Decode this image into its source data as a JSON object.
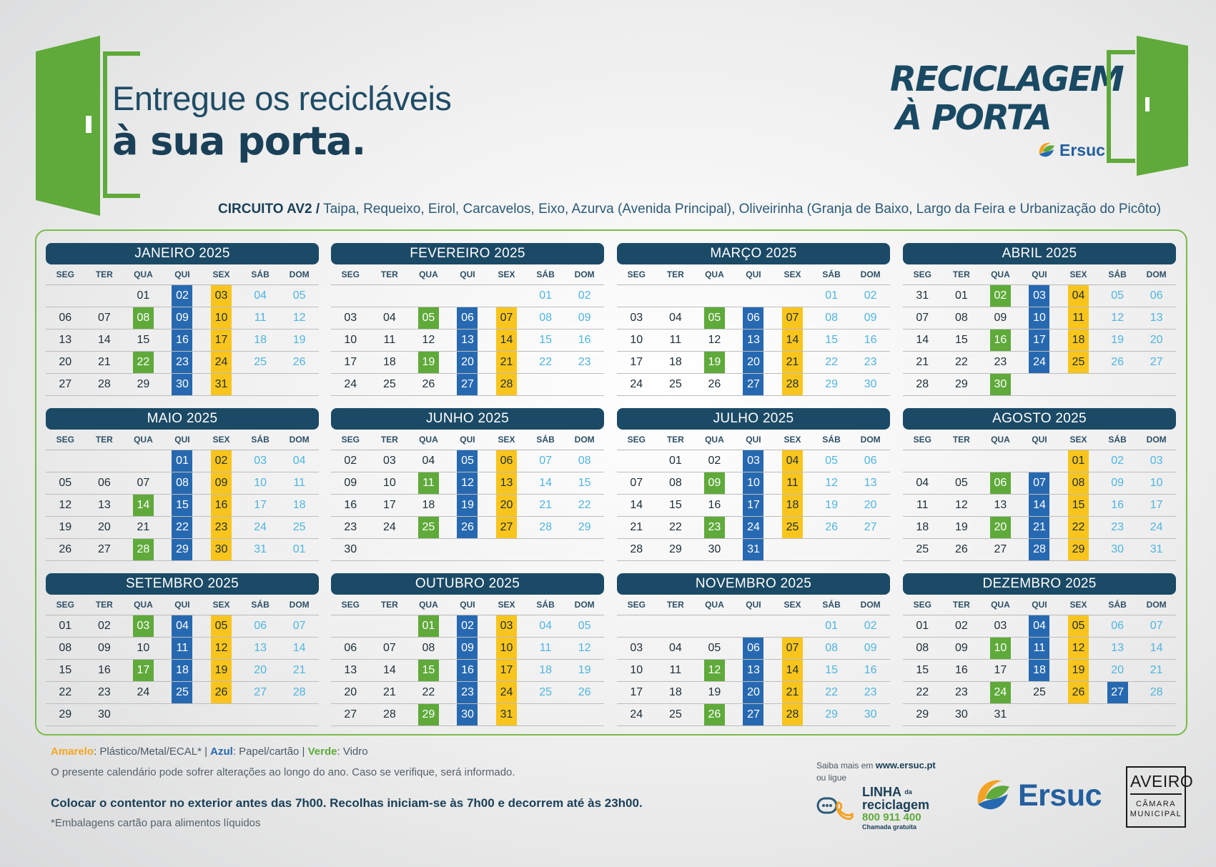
{
  "header": {
    "tagline_line1": "Entregue os recicláveis",
    "tagline_line2": "à sua porta.",
    "brand_title_line1": "RECICLAGEM",
    "brand_title_line2": "À PORTA",
    "brand_name": "Ersuc",
    "circuit_label": "CIRCUITO AV2 /",
    "circuit_areas": "Taipa, Requeixo, Eirol, Carcavelos, Eixo, Azurva (Avenida Principal), Oliveirinha (Granja de Baixo, Largo da Feira e Urbanização do Picôto)"
  },
  "colors": {
    "yellow": "#f9c51d",
    "blue": "#2769b0",
    "green": "#5faa3a",
    "header_navy": "#1b4a66",
    "weekend_text": "#4fb5e0"
  },
  "weekdays": [
    "SEG",
    "TER",
    "QUA",
    "QUI",
    "SEX",
    "SÁB",
    "DOM"
  ],
  "months": [
    {
      "title": "JANEIRO 2025",
      "weeks": [
        [
          "",
          "",
          "01",
          "02:b",
          "03:y",
          "04:w",
          "05:w"
        ],
        [
          "06",
          "07",
          "08:g",
          "09:b",
          "10:y",
          "11:w",
          "12:w"
        ],
        [
          "13",
          "14",
          "15",
          "16:b",
          "17:y",
          "18:w",
          "19:w"
        ],
        [
          "20",
          "21",
          "22:g",
          "23:b",
          "24:y",
          "25:w",
          "26:w"
        ],
        [
          "27",
          "28",
          "29",
          "30:b",
          "31:y",
          "",
          ""
        ]
      ]
    },
    {
      "title": "FEVEREIRO 2025",
      "weeks": [
        [
          "",
          "",
          "",
          "",
          "",
          "01:w",
          "02:w"
        ],
        [
          "03",
          "04",
          "05:g",
          "06:b",
          "07:y",
          "08:w",
          "09:w"
        ],
        [
          "10",
          "11",
          "12",
          "13:b",
          "14:y",
          "15:w",
          "16:w"
        ],
        [
          "17",
          "18",
          "19:g",
          "20:b",
          "21:y",
          "22:w",
          "23:w"
        ],
        [
          "24",
          "25",
          "26",
          "27:b",
          "28:y",
          "",
          ""
        ]
      ]
    },
    {
      "title": "MARÇO 2025",
      "weeks": [
        [
          "",
          "",
          "",
          "",
          "",
          "01:w",
          "02:w"
        ],
        [
          "03",
          "04",
          "05:g",
          "06:b",
          "07:y",
          "08:w",
          "09:w"
        ],
        [
          "10",
          "11",
          "12",
          "13:b",
          "14:y",
          "15:w",
          "16:w"
        ],
        [
          "17",
          "18",
          "19:g",
          "20:b",
          "21:y",
          "22:w",
          "23:w"
        ],
        [
          "24",
          "25",
          "26",
          "27:b",
          "28:y",
          "29:w",
          "30:w"
        ]
      ]
    },
    {
      "title": "ABRIL 2025",
      "weeks": [
        [
          "31",
          "01",
          "02:g",
          "03:b",
          "04:y",
          "05:w",
          "06:w"
        ],
        [
          "07",
          "08",
          "09",
          "10:b",
          "11:y",
          "12:w",
          "13:w"
        ],
        [
          "14",
          "15",
          "16:g",
          "17:b",
          "18:y",
          "19:w",
          "20:w"
        ],
        [
          "21",
          "22",
          "23",
          "24:b",
          "25:y",
          "26:w",
          "27:w"
        ],
        [
          "28",
          "29",
          "30:g",
          "",
          "",
          "",
          ""
        ]
      ]
    },
    {
      "title": "MAIO 2025",
      "weeks": [
        [
          "",
          "",
          "",
          "01:b",
          "02:y",
          "03:w",
          "04:w"
        ],
        [
          "05",
          "06",
          "07",
          "08:b",
          "09:y",
          "10:w",
          "11:w"
        ],
        [
          "12",
          "13",
          "14:g",
          "15:b",
          "16:y",
          "17:w",
          "18:w"
        ],
        [
          "19",
          "20",
          "21",
          "22:b",
          "23:y",
          "24:w",
          "25:w"
        ],
        [
          "26",
          "27",
          "28:g",
          "29:b",
          "30:y",
          "31:w",
          "01:w"
        ]
      ]
    },
    {
      "title": "JUNHO 2025",
      "weeks": [
        [
          "02",
          "03",
          "04",
          "05:b",
          "06:y",
          "07:w",
          "08:w"
        ],
        [
          "09",
          "10",
          "11:g",
          "12:b",
          "13:y",
          "14:w",
          "15:w"
        ],
        [
          "16",
          "17",
          "18",
          "19:b",
          "20:y",
          "21:w",
          "22:w"
        ],
        [
          "23",
          "24",
          "25:g",
          "26:b",
          "27:y",
          "28:w",
          "29:w"
        ],
        [
          "30",
          "",
          "",
          "",
          "",
          "",
          ""
        ]
      ]
    },
    {
      "title": "JULHO 2025",
      "weeks": [
        [
          "",
          "01",
          "02",
          "03:b",
          "04:y",
          "05:w",
          "06:w"
        ],
        [
          "07",
          "08",
          "09:g",
          "10:b",
          "11:y",
          "12:w",
          "13:w"
        ],
        [
          "14",
          "15",
          "16",
          "17:b",
          "18:y",
          "19:w",
          "20:w"
        ],
        [
          "21",
          "22",
          "23:g",
          "24:b",
          "25:y",
          "26:w",
          "27:w"
        ],
        [
          "28",
          "29",
          "30",
          "31:b",
          "",
          "",
          ""
        ]
      ]
    },
    {
      "title": "AGOSTO 2025",
      "weeks": [
        [
          "",
          "",
          "",
          "",
          "01:y",
          "02:w",
          "03:w"
        ],
        [
          "04",
          "05",
          "06:g",
          "07:b",
          "08:y",
          "09:w",
          "10:w"
        ],
        [
          "11",
          "12",
          "13",
          "14:b",
          "15:y",
          "16:w",
          "17:w"
        ],
        [
          "18",
          "19",
          "20:g",
          "21:b",
          "22:y",
          "23:w",
          "24:w"
        ],
        [
          "25",
          "26",
          "27",
          "28:b",
          "29:y",
          "30:w",
          "31:w"
        ]
      ]
    },
    {
      "title": "SETEMBRO 2025",
      "weeks": [
        [
          "01",
          "02",
          "03:g",
          "04:b",
          "05:y",
          "06:w",
          "07:w"
        ],
        [
          "08",
          "09",
          "10",
          "11:b",
          "12:y",
          "13:w",
          "14:w"
        ],
        [
          "15",
          "16",
          "17:g",
          "18:b",
          "19:y",
          "20:w",
          "21:w"
        ],
        [
          "22",
          "23",
          "24",
          "25:b",
          "26:y",
          "27:w",
          "28:w"
        ],
        [
          "29",
          "30",
          "",
          "",
          "",
          "",
          ""
        ]
      ]
    },
    {
      "title": "OUTUBRO 2025",
      "weeks": [
        [
          "",
          "",
          "01:g",
          "02:b",
          "03:y",
          "04:w",
          "05:w"
        ],
        [
          "06",
          "07",
          "08",
          "09:b",
          "10:y",
          "11:w",
          "12:w"
        ],
        [
          "13",
          "14",
          "15:g",
          "16:b",
          "17:y",
          "18:w",
          "19:w"
        ],
        [
          "20",
          "21",
          "22",
          "23:b",
          "24:y",
          "25:w",
          "26:w"
        ],
        [
          "27",
          "28",
          "29:g",
          "30:b",
          "31:y",
          "",
          ""
        ]
      ]
    },
    {
      "title": "NOVEMBRO 2025",
      "weeks": [
        [
          "",
          "",
          "",
          "",
          "",
          "01:w",
          "02:w"
        ],
        [
          "03",
          "04",
          "05",
          "06:b",
          "07:y",
          "08:w",
          "09:w"
        ],
        [
          "10",
          "11",
          "12:g",
          "13:b",
          "14:y",
          "15:w",
          "16:w"
        ],
        [
          "17",
          "18",
          "19",
          "20:b",
          "21:y",
          "22:w",
          "23:w"
        ],
        [
          "24",
          "25",
          "26:g",
          "27:b",
          "28:y",
          "29:w",
          "30:w"
        ]
      ]
    },
    {
      "title": "DEZEMBRO 2025",
      "weeks": [
        [
          "01",
          "02",
          "03",
          "04:b",
          "05:y",
          "06:w",
          "07:w"
        ],
        [
          "08",
          "09",
          "10:g",
          "11:b",
          "12:y",
          "13:w",
          "14:w"
        ],
        [
          "15",
          "16",
          "17",
          "18:b",
          "19:y",
          "20:w",
          "21:w"
        ],
        [
          "22",
          "23",
          "24:g",
          "25",
          "26:y",
          "27:b",
          "28:w"
        ],
        [
          "29",
          "30",
          "31",
          "",
          "",
          "",
          ""
        ]
      ]
    }
  ],
  "footer": {
    "legend_yellow_label": "Amarelo",
    "legend_yellow_desc": ": Plástico/Metal/ECAL* | ",
    "legend_blue_label": "Azul",
    "legend_blue_desc": ": Papel/cartão  | ",
    "legend_green_label": "Verde",
    "legend_green_desc": ": Vidro",
    "notice": "O presente calendário pode sofrer alterações ao longo do ano. Caso se verifique, será informado.",
    "instructions": "Colocar o contentor no exterior antes das 7h00. Recolhas iniciam-se às 7h00 e decorrem até às 23h00.",
    "footnote": "*Embalagens cartão para alimentos líquidos",
    "saiba_prefix": "Saiba mais em ",
    "website": "www.ersuc.pt",
    "ou_ligue": "ou ligue",
    "linha_label": "LINHA",
    "linha_da": "da",
    "linha_label2": "reciclagem",
    "phone": "800 911 400",
    "phone_note": "Chamada gratuita",
    "ersuc_logo_text": "Ersuc",
    "municipality_name": "AVEIRO",
    "municipality_sub_line1": "CÂMARA",
    "municipality_sub_line2": "MUNICIPAL"
  }
}
